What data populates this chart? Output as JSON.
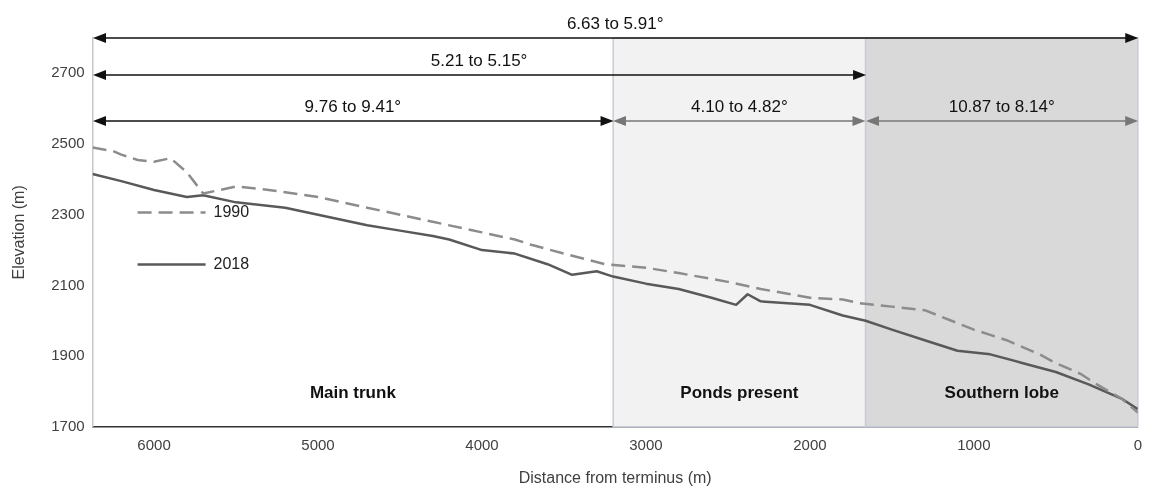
{
  "chart_data": {
    "type": "line",
    "xlabel": "Distance from terminus (m)",
    "ylabel": "Elevation (m)",
    "xlim": [
      6375,
      0
    ],
    "xticks": [
      6000,
      5000,
      4000,
      3000,
      2000,
      1000,
      0
    ],
    "ylim": [
      1700,
      2800
    ],
    "yticks": [
      1700,
      1900,
      2100,
      2300,
      2500,
      2700
    ],
    "grid": false,
    "legend": "left",
    "marker": "none",
    "series": [
      {
        "name": "1990",
        "color": "#8c8c8c",
        "line_style": "dashed",
        "x": [
          6375,
          6250,
          6200,
          6100,
          6000,
          5900,
          5800,
          5700,
          5600,
          5500,
          5300,
          5000,
          4700,
          4500,
          4300,
          4000,
          3800,
          3700,
          3500,
          3250,
          3000,
          2800,
          2500,
          2300,
          2000,
          1800,
          1700,
          1500,
          1300,
          1000,
          800,
          600,
          500,
          350,
          250,
          100,
          0
        ],
        "values": [
          2490,
          2480,
          2470,
          2455,
          2450,
          2460,
          2420,
          2360,
          2370,
          2380,
          2370,
          2350,
          2320,
          2300,
          2280,
          2250,
          2230,
          2215,
          2190,
          2160,
          2150,
          2135,
          2110,
          2090,
          2065,
          2060,
          2050,
          2040,
          2030,
          1975,
          1945,
          1905,
          1880,
          1850,
          1820,
          1780,
          1740
        ]
      },
      {
        "name": "2018",
        "color": "#595959",
        "line_style": "solid",
        "x": [
          6375,
          6200,
          6000,
          5800,
          5700,
          5500,
          5200,
          5000,
          4700,
          4500,
          4300,
          4200,
          4000,
          3800,
          3600,
          3450,
          3300,
          3200,
          3000,
          2800,
          2600,
          2450,
          2380,
          2300,
          2000,
          1800,
          1660,
          1500,
          1300,
          1100,
          900,
          700,
          500,
          300,
          100,
          0
        ],
        "values": [
          2415,
          2395,
          2370,
          2350,
          2355,
          2335,
          2320,
          2300,
          2270,
          2255,
          2240,
          2230,
          2200,
          2190,
          2160,
          2130,
          2140,
          2125,
          2105,
          2090,
          2065,
          2045,
          2075,
          2055,
          2045,
          2015,
          2000,
          1975,
          1945,
          1915,
          1905,
          1880,
          1855,
          1820,
          1780,
          1750
        ]
      }
    ],
    "bands": [
      {
        "axis": "x",
        "from": 3200,
        "to": 1660,
        "label": "Ponds present",
        "color": "#f2f2f2"
      },
      {
        "axis": "x",
        "from": 1660,
        "to": 0,
        "label": "Southern lobe",
        "color": "#d9d9d9"
      }
    ],
    "annotations": [
      "6.63 to 5.91°",
      "5.21 to 5.15°",
      "9.76 to 9.41°",
      "4.10 to 4.82°",
      "10.87 to 8.14°",
      "Main trunk"
    ]
  }
}
